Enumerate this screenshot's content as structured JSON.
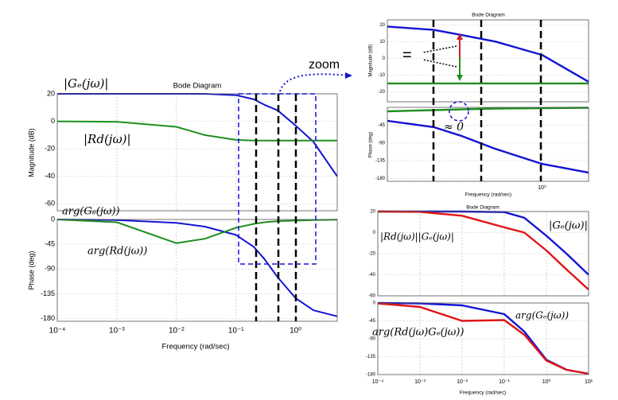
{
  "chart_data": [
    {
      "type": "line",
      "title": "Bode Diagram",
      "y_label": "Magnitude (dB)",
      "xscale": "log",
      "grid": true,
      "xlim": [
        0.0001,
        5
      ],
      "ylim": [
        -65,
        20
      ],
      "xticks": [
        0.0001,
        0.001,
        0.01,
        0.1,
        1
      ],
      "yticks": [
        20,
        0,
        -20,
        -40,
        -60
      ],
      "x": [
        0.0001,
        0.001,
        0.01,
        0.03,
        0.1,
        0.2,
        0.3,
        0.5,
        1,
        2,
        5
      ],
      "series": [
        {
          "color": "#1414d2",
          "values": [
            20,
            20,
            20,
            20,
            19,
            16,
            12,
            8,
            -3,
            -15,
            -40
          ]
        },
        {
          "color": "#1f8f1f",
          "values": [
            0,
            -0.3,
            -4,
            -10,
            -13.5,
            -14,
            -14,
            -14,
            -14,
            -14,
            -14
          ]
        }
      ],
      "annotations": [
        "|Gₑ(jω)|",
        "|Rd(jω)|",
        "zoom"
      ]
    },
    {
      "type": "line",
      "y_label": "Phase (deg)",
      "x_label": "Frequency  (rad/sec)",
      "xscale": "log",
      "grid": true,
      "xlim": [
        0.0001,
        5
      ],
      "ylim": [
        -185,
        0
      ],
      "xticks": [
        {
          "value": 0.0001,
          "label": "10⁻⁴"
        },
        {
          "value": 0.001,
          "label": "10⁻³"
        },
        {
          "value": 0.01,
          "label": "10⁻²"
        },
        {
          "value": 0.1,
          "label": "10⁻¹"
        },
        {
          "value": 1,
          "label": "10⁰"
        }
      ],
      "yticks": [
        0,
        -45,
        -90,
        -135,
        -180
      ],
      "x": [
        0.0001,
        0.001,
        0.01,
        0.03,
        0.1,
        0.2,
        0.3,
        0.5,
        1,
        2,
        5
      ],
      "series": [
        {
          "color": "#1414d2",
          "values": [
            0,
            -1,
            -6,
            -13,
            -28,
            -50,
            -72,
            -105,
            -143,
            -165,
            -176
          ]
        },
        {
          "color": "#1f8f1f",
          "values": [
            0,
            -5,
            -43,
            -35,
            -15,
            -8,
            -5,
            -3,
            -2,
            -1,
            -0.5
          ]
        }
      ],
      "annotations": [
        "arg(Gₑ(jω))",
        "arg(Rd(jω))"
      ]
    },
    {
      "type": "line",
      "title": "Bode Diagram",
      "y_label": "Magnitude (dB)",
      "xscale": "log",
      "grid": true,
      "xlim": [
        0.1,
        2
      ],
      "ylim": [
        -26,
        23
      ],
      "xticks": [
        1
      ],
      "yticks": [
        20,
        10,
        0,
        -10,
        -20
      ],
      "x": [
        0.1,
        0.2,
        0.3,
        0.5,
        1,
        2
      ],
      "series": [
        {
          "color": "#1414d2",
          "values": [
            19,
            17,
            14,
            10,
            2,
            -14
          ]
        },
        {
          "color": "#1f8f1f",
          "values": [
            -15,
            -15,
            -15,
            -15,
            -15,
            -15
          ]
        }
      ],
      "annotations": [
        "="
      ]
    },
    {
      "type": "line",
      "y_label": "Phase (deg)",
      "x_label": "Frequency  (rad/sec)",
      "xscale": "log",
      "grid": true,
      "xlim": [
        0.1,
        2
      ],
      "ylim": [
        -187,
        0
      ],
      "xticks": [
        {
          "value": 1,
          "label": "10⁰"
        }
      ],
      "yticks": [
        -45,
        -90,
        -135,
        -180
      ],
      "x": [
        0.1,
        0.2,
        0.3,
        0.5,
        1,
        2
      ],
      "series": [
        {
          "color": "#1414d2",
          "values": [
            -34,
            -50,
            -72,
            -105,
            -143,
            -165
          ]
        },
        {
          "color": "#1f8f1f",
          "values": [
            -10,
            -7,
            -5,
            -3,
            -2,
            -1
          ]
        }
      ],
      "annotations": [
        "≈ 0"
      ]
    },
    {
      "type": "line",
      "title": "Bode Diagram",
      "xscale": "log",
      "grid": true,
      "xlim": [
        0.0001,
        10
      ],
      "ylim": [
        -60,
        20
      ],
      "xticks": [
        0.0001,
        0.001,
        0.01,
        0.1,
        1,
        10
      ],
      "yticks": [
        20,
        0,
        -20,
        -40,
        -60
      ],
      "x": [
        0.0001,
        0.001,
        0.01,
        0.1,
        0.3,
        1,
        3,
        10
      ],
      "series": [
        {
          "color": "#1414d2",
          "values": [
            20,
            20,
            20,
            19.5,
            14,
            -3,
            -20,
            -40
          ]
        },
        {
          "color": "#e01414",
          "values": [
            20,
            19.7,
            16,
            5,
            0,
            -17,
            -35,
            -54
          ]
        }
      ],
      "annotations": [
        "|Gₑ(jω)|",
        "|Rd(jω)||Gₑ(jω)|"
      ]
    },
    {
      "type": "line",
      "x_label": "Frequency  (rad/sec)",
      "xscale": "log",
      "grid": true,
      "xlim": [
        0.0001,
        10
      ],
      "ylim": [
        -180,
        0
      ],
      "xticks": [
        {
          "value": 0.0001,
          "label": "10⁻⁴"
        },
        {
          "value": 0.001,
          "label": "10⁻³"
        },
        {
          "value": 0.01,
          "label": "10⁻²"
        },
        {
          "value": 0.1,
          "label": "10⁻¹"
        },
        {
          "value": 1,
          "label": "10⁰"
        },
        {
          "value": 10,
          "label": "10¹"
        }
      ],
      "yticks": [
        0,
        -45,
        -90,
        -135,
        -180
      ],
      "x": [
        0.0001,
        0.001,
        0.01,
        0.1,
        0.3,
        1,
        3,
        10
      ],
      "series": [
        {
          "color": "#1414d2",
          "values": [
            0,
            -1,
            -6,
            -28,
            -72,
            -143,
            -168,
            -178
          ]
        },
        {
          "color": "#e01414",
          "values": [
            -1,
            -10,
            -45,
            -43,
            -80,
            -145,
            -168,
            -178
          ]
        }
      ],
      "annotations": [
        "arg(Gₑ(jω))",
        "arg(Rd(jω)Gₑ(jω))"
      ]
    }
  ]
}
